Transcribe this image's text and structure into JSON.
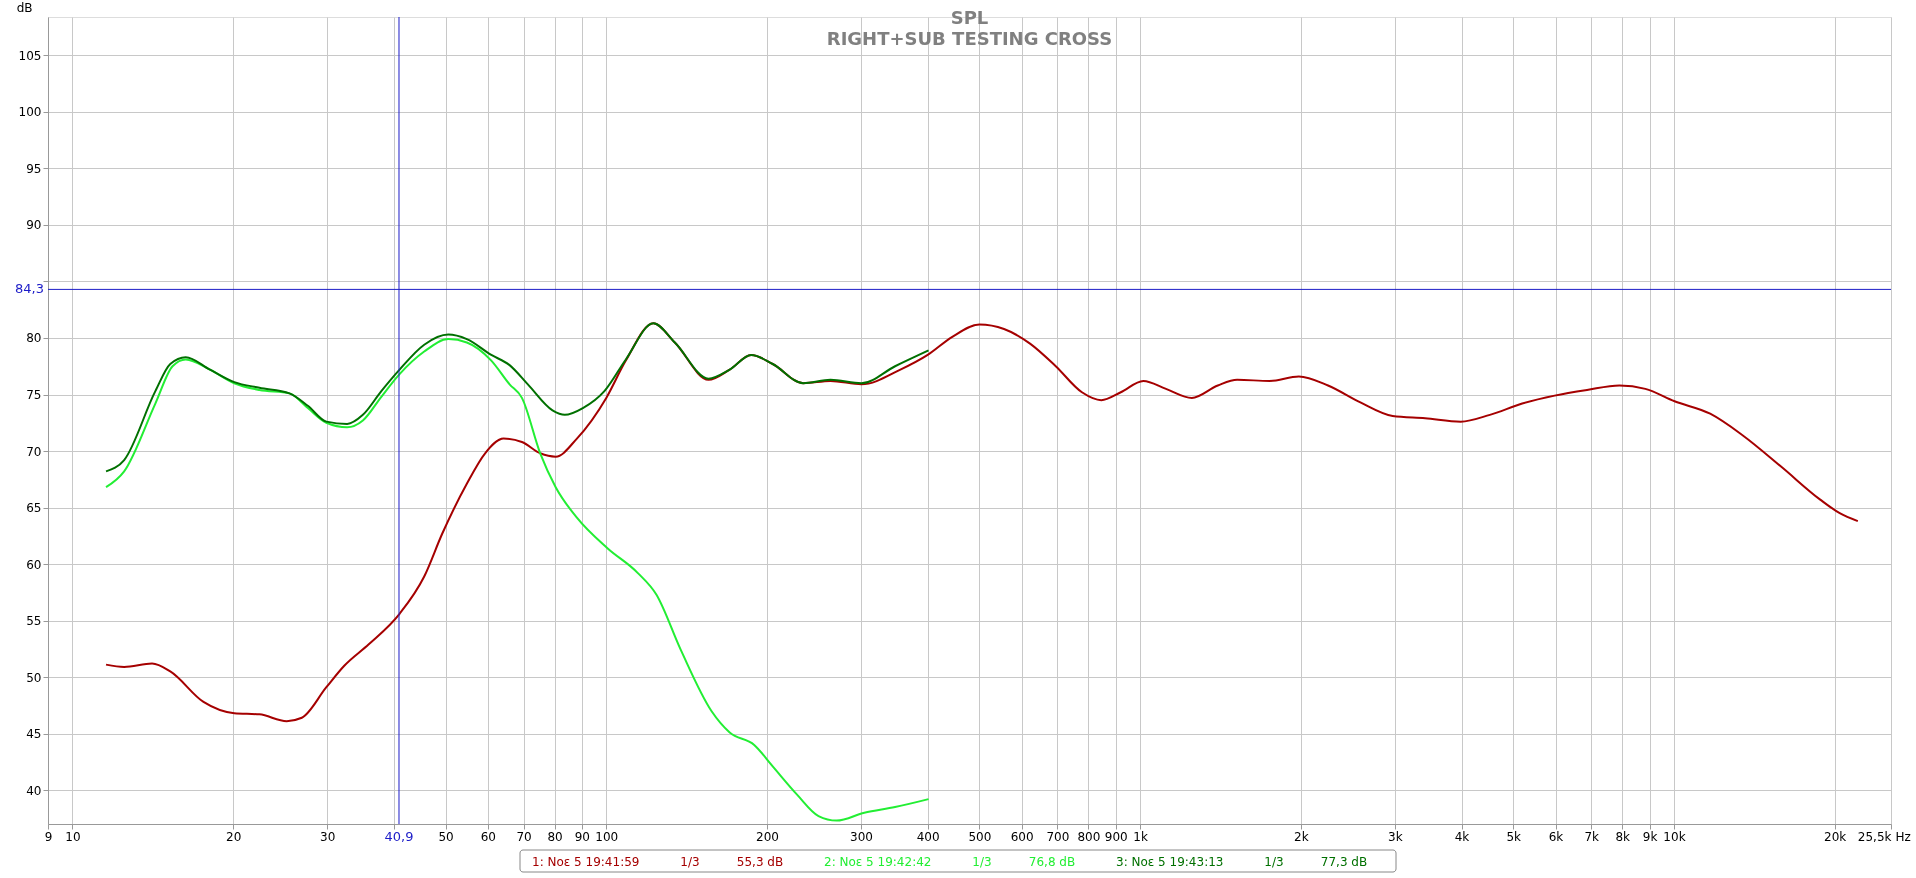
{
  "chart_data": {
    "type": "line",
    "title": "SPL",
    "subtitle": "RIGHT+SUB TESTING CROSS",
    "ylabel": "dB",
    "xlabel": "Hz",
    "log": "x",
    "grid": true,
    "legend": "bottom",
    "line_style": "solid",
    "xlim": [
      9,
      25500
    ],
    "ylim": [
      37,
      108.4
    ],
    "xticks": [
      9,
      10,
      20,
      30,
      {
        "value": 40,
        "label": null
      },
      50,
      60,
      70,
      80,
      90,
      100,
      200,
      300,
      400,
      500,
      600,
      700,
      800,
      900,
      {
        "value": 1000,
        "label": "1k"
      },
      {
        "value": 2000,
        "label": "2k"
      },
      {
        "value": 3000,
        "label": "3k"
      },
      {
        "value": 4000,
        "label": "4k"
      },
      {
        "value": 5000,
        "label": "5k"
      },
      {
        "value": 6000,
        "label": "6k"
      },
      {
        "value": 7000,
        "label": "7k"
      },
      {
        "value": 8000,
        "label": "8k"
      },
      {
        "value": 9000,
        "label": "9k"
      },
      {
        "value": 10000,
        "label": "10k"
      },
      {
        "value": 20000,
        "label": "20k"
      },
      {
        "value": 25500,
        "label": "25,5k"
      }
    ],
    "yticks": [
      40,
      45,
      50,
      55,
      60,
      65,
      70,
      75,
      80,
      {
        "value": 85,
        "label": null
      },
      90,
      95,
      100,
      105
    ],
    "ref_lines": [
      {
        "axis": "x",
        "value": 40.9,
        "label": "40,9",
        "color": "#1c1cc8"
      },
      {
        "axis": "y",
        "value": 84.3,
        "label": "84,3",
        "color": "#1c1cc8"
      }
    ],
    "annotations": [
      "1/3",
      "55,3 dB",
      "1/3",
      "76,8 dB",
      "1/3",
      "77,3 dB"
    ],
    "series": [
      {
        "name": "1: Νοε 5 19:41:59",
        "color": "#a50000",
        "x": [
          11.56,
          12.5,
          14.1,
          15.25,
          17.6,
          20.1,
          22.4,
          25.2,
          26.9,
          29.9,
          32.3,
          35.9,
          41.0,
          45.6,
          49.3,
          54.8,
          59.3,
          64.2,
          69.5,
          75.2,
          80.4,
          88.1,
          100,
          108.8,
          122.5,
          134.4,
          155.4,
          170.3,
          186.8,
          205,
          233.9,
          263,
          300.6,
          355.6,
          400,
          444.8,
          500,
          556,
          622,
          695,
          778,
          846,
          920,
          1014,
          1118,
          1250,
          1398,
          1520,
          1749,
          1983,
          2249,
          2586,
          2972,
          3419,
          3986,
          4520,
          5197,
          5977,
          6873,
          7904,
          8839,
          10025,
          11690,
          13440,
          15890,
          18790,
          20440,
          22100
        ],
        "values": [
          51.1,
          50.9,
          51.2,
          50.5,
          47.8,
          46.8,
          46.7,
          46.1,
          46.4,
          49.1,
          51.0,
          52.9,
          55.6,
          58.9,
          62.7,
          67.1,
          69.8,
          71.1,
          70.8,
          69.8,
          69.5,
          71.1,
          74.7,
          78.0,
          81.3,
          79.6,
          76.3,
          77.2,
          78.5,
          77.7,
          76.0,
          76.2,
          75.9,
          77.2,
          78.5,
          80.1,
          81.2,
          80.8,
          79.5,
          77.5,
          75.2,
          74.5,
          75.2,
          76.2,
          75.5,
          74.7,
          75.8,
          76.3,
          76.2,
          76.6,
          75.8,
          74.3,
          73.1,
          72.9,
          72.6,
          73.2,
          74.2,
          74.9,
          75.4,
          75.8,
          75.5,
          74.4,
          73.3,
          71.4,
          68.6,
          65.7,
          64.5,
          63.8
        ]
      },
      {
        "name": "2: Νοε 5 19:42:42",
        "color": "#22ee33",
        "x": [
          11.56,
          12.5,
          14.3,
          15.4,
          16.3,
          18.1,
          20.1,
          22.4,
          25.5,
          27.6,
          29.9,
          32.7,
          35.0,
          37.9,
          41.0,
          45.6,
          50.6,
          54.8,
          60.9,
          65.9,
          69.5,
          75.2,
          80.4,
          88.1,
          100.5,
          114.6,
          124.1,
          137.9,
          157.4,
          170.3,
          189.3,
          205,
          227.7,
          249.8,
          270.1,
          304.3,
          347.5,
          401.5
        ],
        "values": [
          66.8,
          68.2,
          74.2,
          77.5,
          78.1,
          77.2,
          76.0,
          75.4,
          75.1,
          73.8,
          72.5,
          72.1,
          72.7,
          74.8,
          76.8,
          78.8,
          79.9,
          79.6,
          78.0,
          75.9,
          74.7,
          69.8,
          66.8,
          64.1,
          61.4,
          59.2,
          57.3,
          52.4,
          47.0,
          45.1,
          44.0,
          42.1,
          39.6,
          37.7,
          37.3,
          38.0,
          38.5,
          39.2
        ]
      },
      {
        "name": "3: Νοε 5 19:43:13",
        "color": "#007000",
        "x": [
          11.56,
          12.5,
          14.3,
          15.25,
          16.3,
          18.1,
          20.1,
          22.4,
          25.5,
          27.6,
          29.9,
          32.7,
          35.0,
          37.9,
          41.0,
          45.6,
          50.6,
          54.8,
          60.9,
          65.9,
          71.3,
          79.3,
          83.6,
          90.4,
          99.2,
          108.8,
          122.5,
          134.4,
          155.4,
          170.3,
          186.8,
          205,
          233.9,
          263,
          300.6,
          347.5,
          401.5
        ],
        "values": [
          68.2,
          69.2,
          75.3,
          77.7,
          78.3,
          77.2,
          76.1,
          75.6,
          75.1,
          74.0,
          72.6,
          72.4,
          73.2,
          75.3,
          77.2,
          79.4,
          80.3,
          79.9,
          78.5,
          77.6,
          75.9,
          73.6,
          73.2,
          73.8,
          75.3,
          78.1,
          81.3,
          79.6,
          76.4,
          77.2,
          78.5,
          77.7,
          76.0,
          76.3,
          76.0,
          77.5,
          78.9
        ]
      }
    ]
  }
}
